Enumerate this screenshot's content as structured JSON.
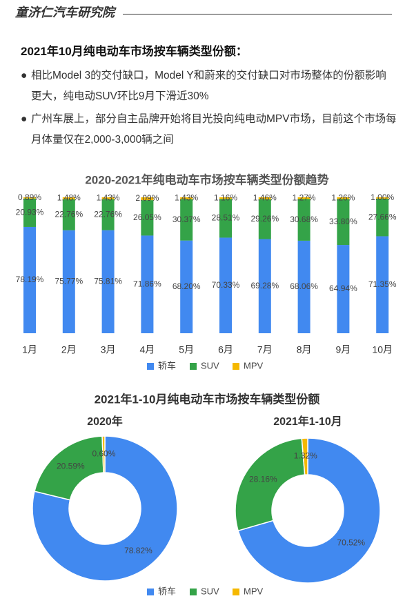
{
  "header": {
    "brand": "童济仁汽车研究院"
  },
  "heading": "2021年10月纯电动车市场按车辆类型份额：",
  "bullets": [
    "相比Model 3的交付缺口，Model Y和蔚来的交付缺口对市场整体的份额影响更大，纯电动SUV环比9月下滑近30%",
    "广州车展上，部分自主品牌开始将目光投向纯电动MPV市场，目前这个市场每月体量仅在2,000-3,000辆之间"
  ],
  "chart_data": [
    {
      "type": "stacked_bar",
      "title": "2020-2021年纯电动车市场按车辆类型份额趋势",
      "categories": [
        "1月",
        "2月",
        "3月",
        "4月",
        "5月",
        "6月",
        "7月",
        "8月",
        "9月",
        "10月"
      ],
      "ylim": [
        0,
        100
      ],
      "series": [
        {
          "name": "轿车",
          "color": "#4189f0",
          "values": [
            78.19,
            75.77,
            75.81,
            71.86,
            68.2,
            70.33,
            69.28,
            68.06,
            64.94,
            71.35
          ],
          "value_labels": [
            "78.19%",
            "75.77%",
            "75.81%",
            "71.86%",
            "68.20%",
            "70.33%",
            "69.28%",
            "68.06%",
            "64.94%",
            "71.35%"
          ]
        },
        {
          "name": "SUV",
          "color": "#34a348",
          "values": [
            20.93,
            22.76,
            22.76,
            26.05,
            30.37,
            28.51,
            29.26,
            30.68,
            33.8,
            27.66
          ],
          "value_labels": [
            "20.93%",
            "22.76%",
            "22.76%",
            "26.05%",
            "30.37%",
            "28.51%",
            "29.26%",
            "30.68%",
            "33.80%",
            "27.66%"
          ]
        },
        {
          "name": "MPV",
          "color": "#f5b800",
          "values": [
            0.89,
            1.48,
            1.43,
            2.09,
            1.43,
            1.16,
            1.46,
            1.27,
            1.26,
            1.0
          ],
          "value_labels": [
            "0.89%",
            "1.48%",
            "1.43%",
            "2.09%",
            "1.43%",
            "1.16%",
            "1.46%",
            "1.27%",
            "1.26%",
            "1.00%"
          ]
        }
      ]
    },
    {
      "type": "donut",
      "title": "2021年1-10月纯电动车市场按车辆类型份额",
      "categories": [
        "轿车",
        "SUV",
        "MPV"
      ],
      "colors": [
        "#4189f0",
        "#34a348",
        "#f5b800"
      ],
      "series": [
        {
          "name": "2020年",
          "values": [
            78.82,
            20.59,
            0.6
          ],
          "value_labels": [
            "78.82%",
            "20.59%",
            "0.60%"
          ]
        },
        {
          "name": "2021年1-10月",
          "values": [
            70.52,
            28.16,
            1.32
          ],
          "value_labels": [
            "70.52%",
            "28.16%",
            "1.32%"
          ]
        }
      ]
    }
  ]
}
